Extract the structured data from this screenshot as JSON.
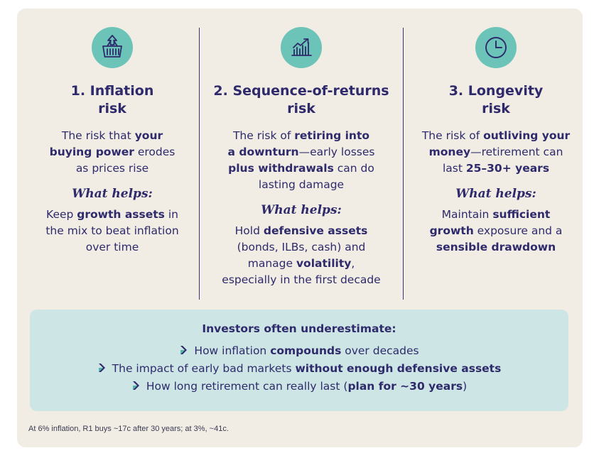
{
  "columns": [
    {
      "icon": "shopping-basket-icon",
      "title_line1": "1. Inflation",
      "title_line2": "risk",
      "desc": [
        [
          {
            "t": "The risk that "
          },
          {
            "t": "your",
            "b": true
          }
        ],
        [
          {
            "t": "buying power",
            "b": true
          },
          {
            "t": " erodes"
          }
        ],
        [
          {
            "t": "as prices rise"
          }
        ]
      ],
      "helps_label": "What helps",
      "helps": [
        [
          {
            "t": "Keep "
          },
          {
            "t": "growth assets",
            "b": true
          },
          {
            "t": " in"
          }
        ],
        [
          {
            "t": "the mix to beat inflation"
          }
        ],
        [
          {
            "t": "over time"
          }
        ]
      ]
    },
    {
      "icon": "rising-chart-icon",
      "title_line1": "2. Sequence-of-returns",
      "title_line2": "risk",
      "desc": [
        [
          {
            "t": "The risk of "
          },
          {
            "t": "retiring into",
            "b": true
          }
        ],
        [
          {
            "t": "a downturn",
            "b": true
          },
          {
            "t": "—early losses"
          }
        ],
        [
          {
            "t": "plus withdrawals",
            "b": true
          },
          {
            "t": " can do"
          }
        ],
        [
          {
            "t": "lasting damage"
          }
        ]
      ],
      "helps_label": "What helps",
      "helps": [
        [
          {
            "t": "Hold "
          },
          {
            "t": "defensive assets",
            "b": true
          }
        ],
        [
          {
            "t": "(bonds, ILBs, cash) and"
          }
        ],
        [
          {
            "t": "manage "
          },
          {
            "t": "volatility",
            "b": true
          },
          {
            "t": ","
          }
        ],
        [
          {
            "t": "especially in the first decade"
          }
        ]
      ]
    },
    {
      "icon": "clock-icon",
      "title_line1": "3. Longevity",
      "title_line2": "risk",
      "desc": [
        [
          {
            "t": "The risk of "
          },
          {
            "t": "outliving your",
            "b": true
          }
        ],
        [
          {
            "t": "money",
            "b": true
          },
          {
            "t": "—retirement can"
          }
        ],
        [
          {
            "t": "last "
          },
          {
            "t": "25–30+ years",
            "b": true
          }
        ]
      ],
      "helps_label": "What helps",
      "helps": [
        [
          {
            "t": "Maintain "
          },
          {
            "t": "sufficient",
            "b": true
          }
        ],
        [
          {
            "t": "growth",
            "b": true
          },
          {
            "t": " exposure and a"
          }
        ],
        [
          {
            "t": "sensible drawdown",
            "b": true
          }
        ]
      ]
    }
  ],
  "callout": {
    "title": "Investors often underestimate:",
    "bullet_icon": "chevron-right-icon",
    "bullets": [
      [
        {
          "t": "How inflation "
        },
        {
          "t": "compounds",
          "b": true
        },
        {
          "t": " over decades"
        }
      ],
      [
        {
          "t": "The impact of early bad markets "
        },
        {
          "t": "without enough defensive assets",
          "b": true
        }
      ],
      [
        {
          "t": "How long retirement can really last ("
        },
        {
          "t": "plan for ~30 years",
          "b": true
        },
        {
          "t": ")"
        }
      ]
    ]
  },
  "footnote": "At 6% inflation, R1 buys ~17c after 30 years; at 3%, ~41c.",
  "colors": {
    "panel_bg": "#f1ede5",
    "text": "#2e2a6b",
    "icon_circle": "#6cc3b8",
    "callout_bg": "#cde6e5",
    "chevron_dark": "#2e2a6b",
    "chevron_teal": "#4fb8ad"
  }
}
